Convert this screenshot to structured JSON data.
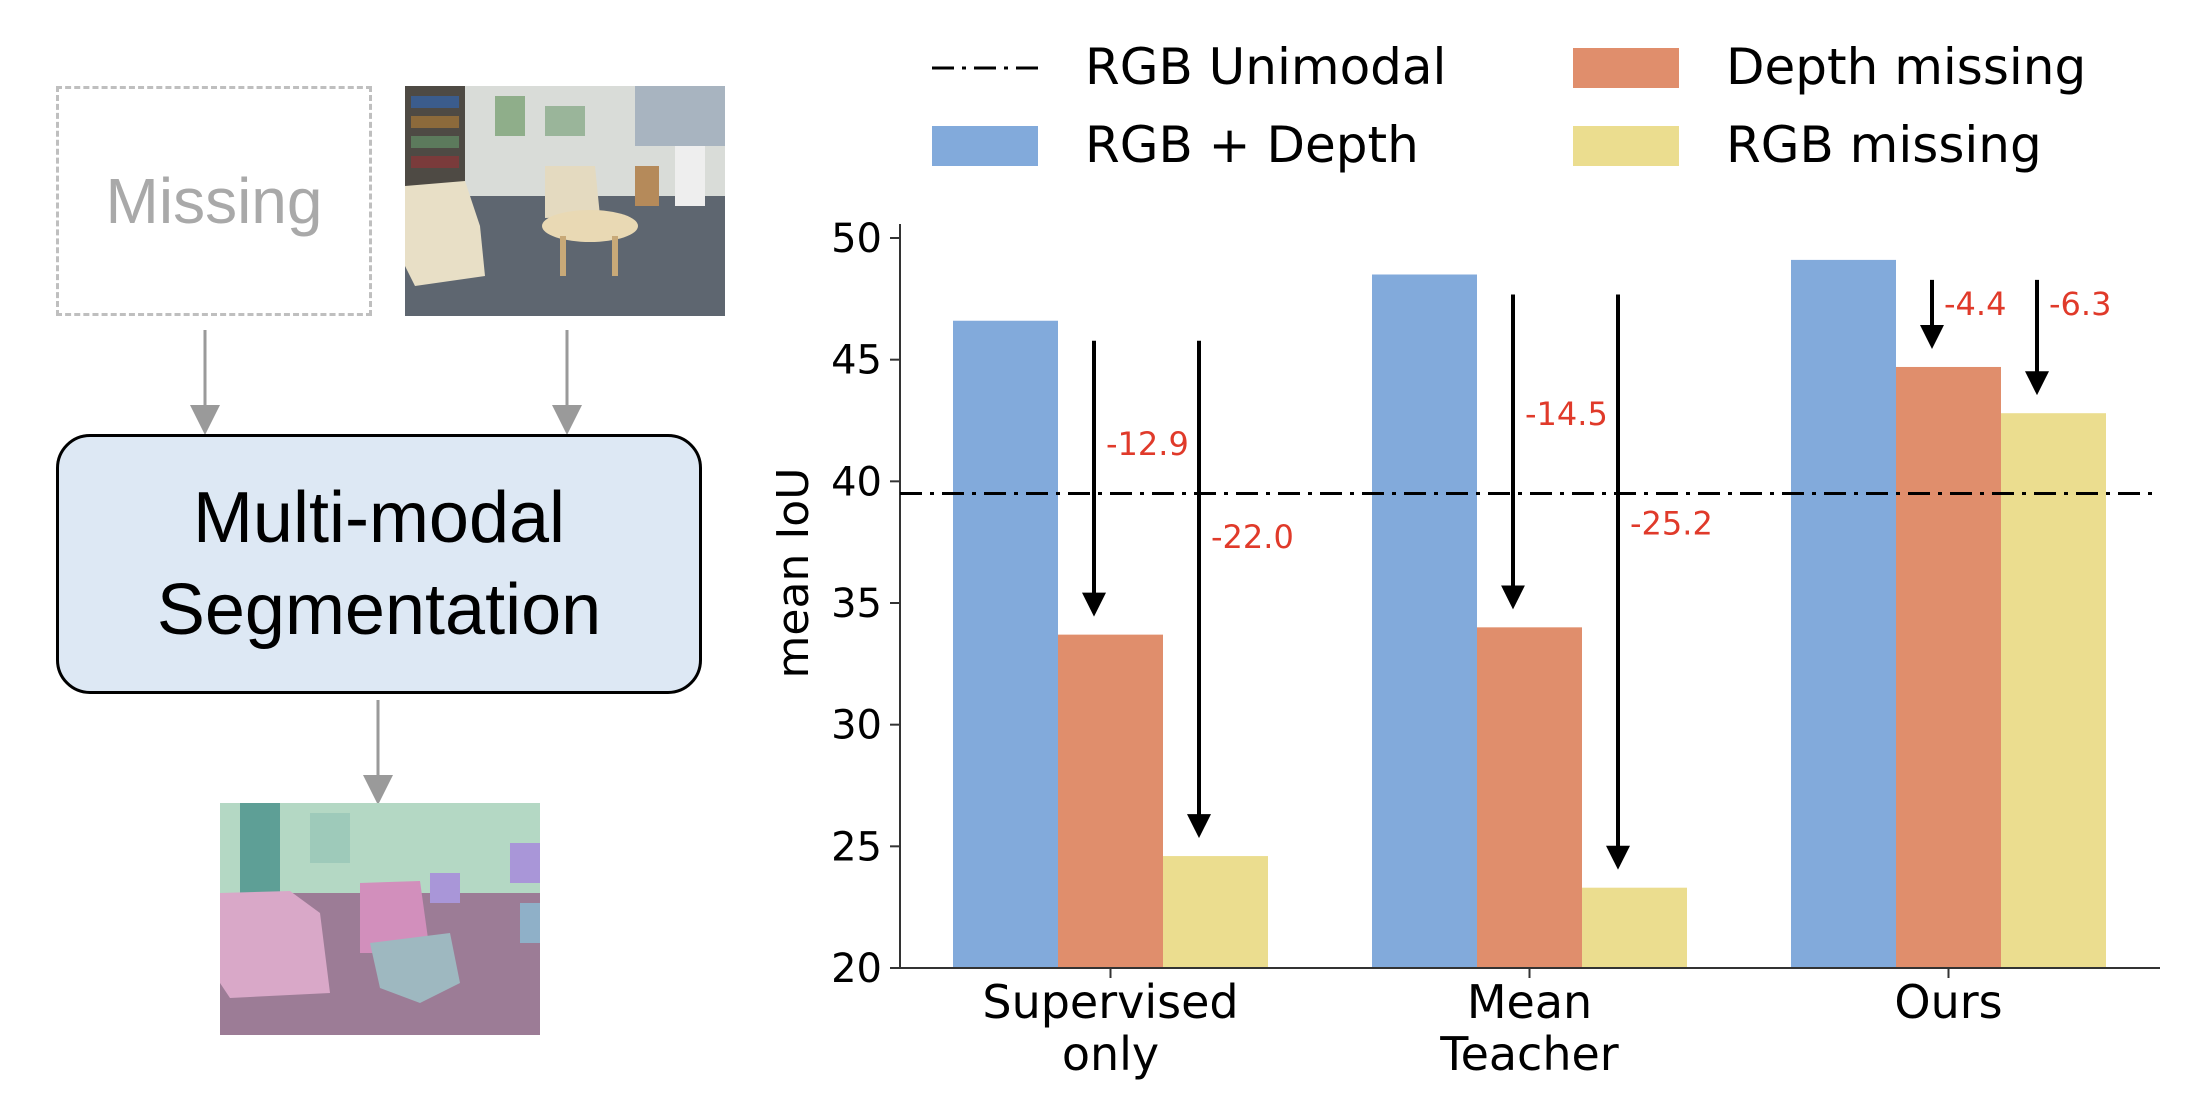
{
  "diagram": {
    "missing_label": "Missing",
    "seg_line1": "Multi-modal",
    "seg_line2": "Segmentation"
  },
  "chart_data": {
    "type": "bar",
    "ylabel": "mean IoU",
    "ylim": [
      20,
      50
    ],
    "yticks": [
      "20",
      "25",
      "30",
      "35",
      "40",
      "45",
      "50"
    ],
    "categories": [
      {
        "lines": [
          "Supervised",
          "only"
        ]
      },
      {
        "lines": [
          "Mean",
          "Teacher"
        ]
      },
      {
        "lines": [
          "Ours"
        ]
      }
    ],
    "series": [
      {
        "name": "RGB + Depth",
        "color": "#82aadb",
        "values": [
          46.6,
          48.5,
          49.1
        ]
      },
      {
        "name": "Depth missing",
        "color": "#e08e6c",
        "values": [
          33.7,
          34.0,
          44.7
        ]
      },
      {
        "name": "RGB missing",
        "color": "#ebdd8f",
        "values": [
          24.6,
          23.3,
          42.8
        ]
      }
    ],
    "reference_line": {
      "name": "RGB Unimodal",
      "value": 39.5
    },
    "drops": [
      {
        "category": 0,
        "series": 1,
        "label": "-12.9"
      },
      {
        "category": 0,
        "series": 2,
        "label": "-22.0"
      },
      {
        "category": 1,
        "series": 1,
        "label": "-14.5"
      },
      {
        "category": 1,
        "series": 2,
        "label": "-25.2"
      },
      {
        "category": 2,
        "series": 1,
        "label": "-4.4"
      },
      {
        "category": 2,
        "series": 2,
        "label": "-6.3"
      }
    ],
    "drop_label_color": "#e03a2a"
  }
}
